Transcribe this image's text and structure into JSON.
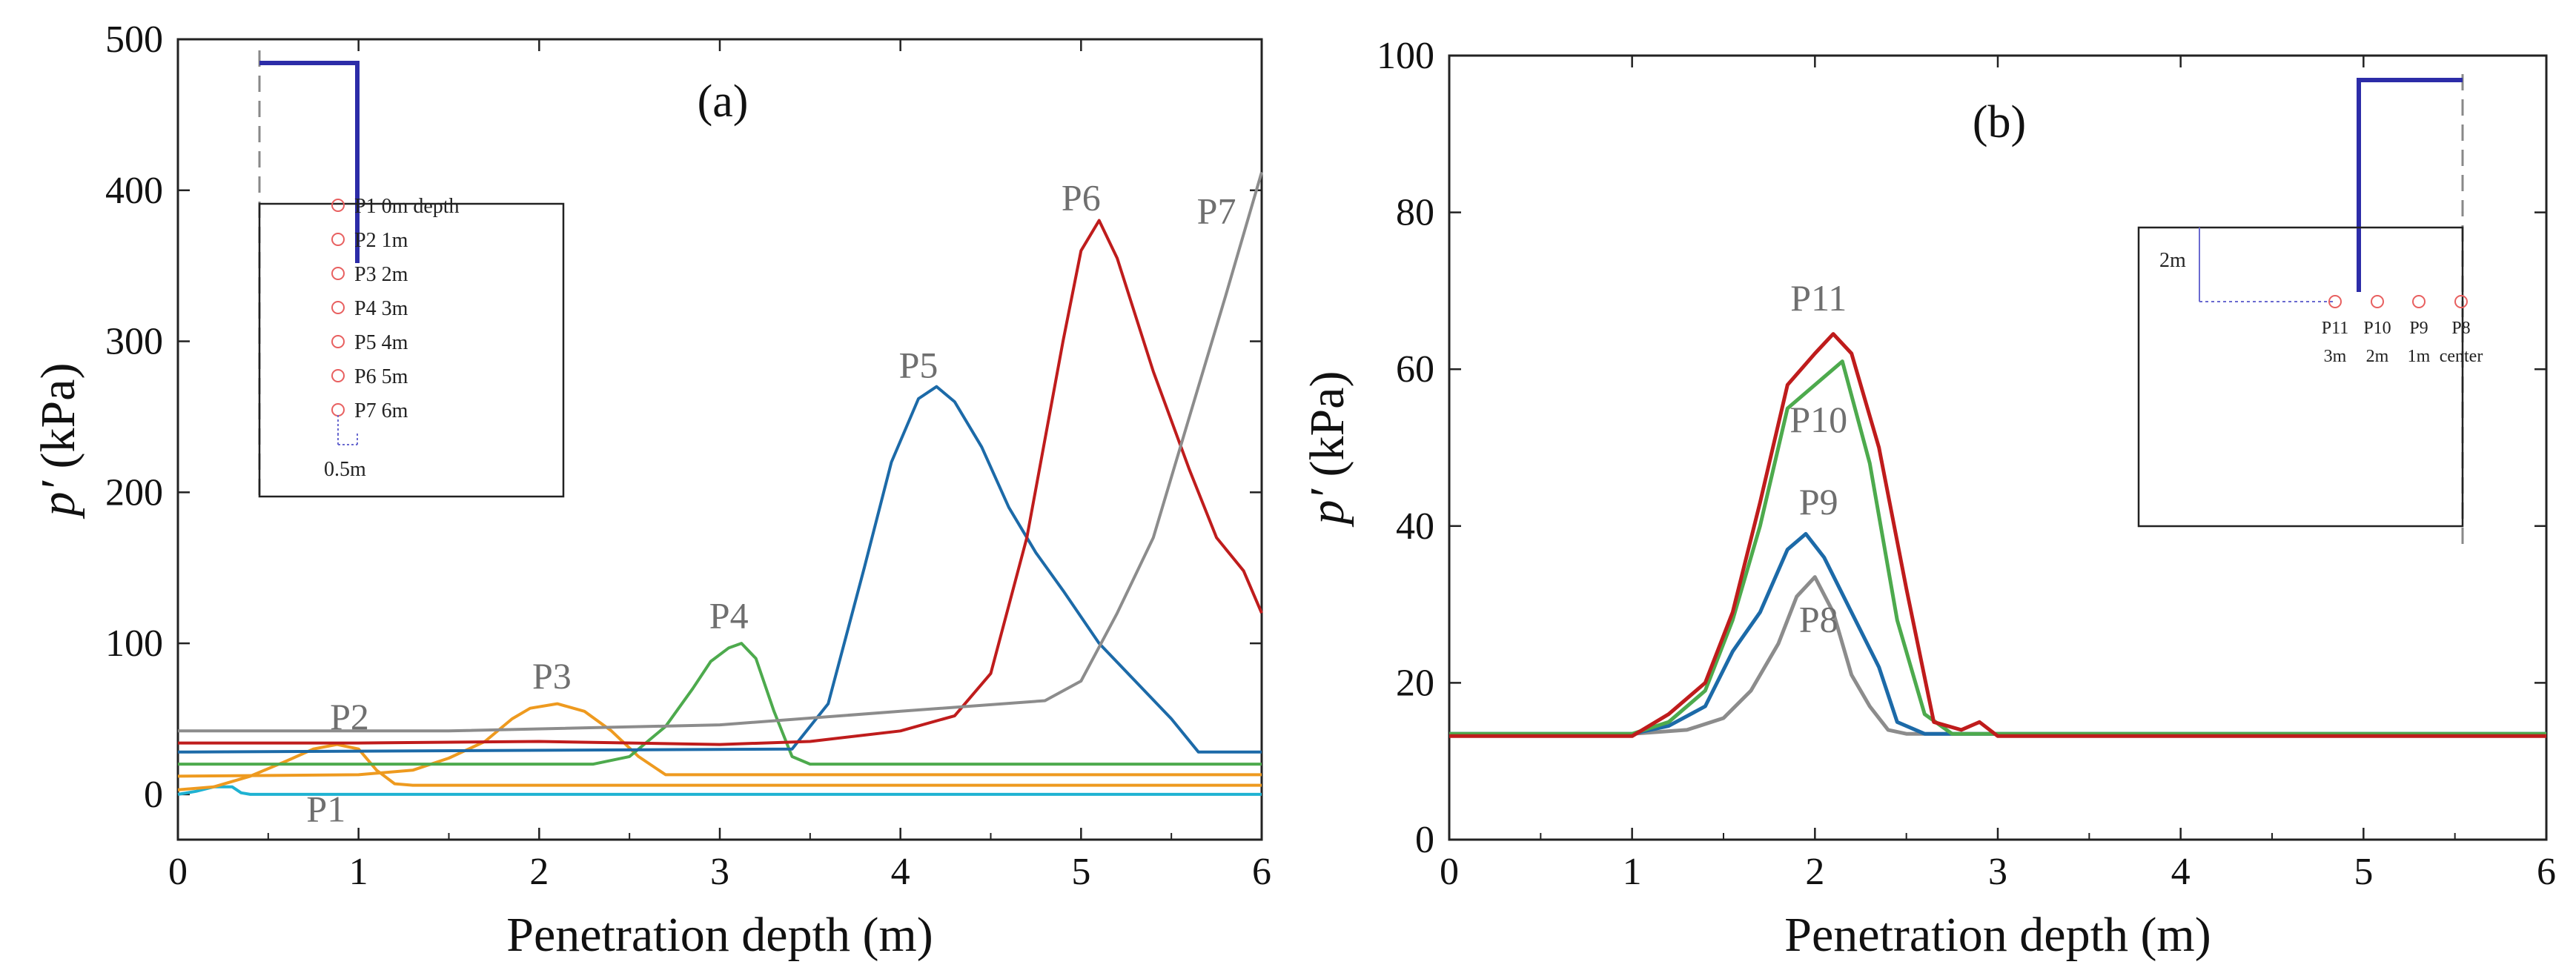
{
  "colors": {
    "P1": "#1fb2d2",
    "P2": "#ee9a1f",
    "P3": "#ee9a1f",
    "P4": "#4daa4d",
    "P5": "#1c6aa8",
    "P6": "#bf1c1c",
    "P7": "#8c8c8c",
    "P8": "#8c8c8c",
    "P9": "#1c6aa8",
    "P10": "#4daa4d",
    "P11": "#bf1c1c",
    "label": "#6f6f6f",
    "pile": "#2c2ca8",
    "marker": "#e86060"
  },
  "chart_data": [
    {
      "type": "line",
      "panel": "(a)",
      "xlabel": "Penetration depth (m)",
      "ylabel_italic": "p′",
      "ylabel_unit": " (kPa)",
      "xlim": [
        0,
        6
      ],
      "ylim": [
        -30,
        500
      ],
      "xticks": [
        "0",
        "1",
        "2",
        "3",
        "4",
        "5",
        "6"
      ],
      "yticks": [
        "0",
        "100",
        "200",
        "300",
        "400",
        "500"
      ],
      "series": [
        {
          "name": "P1",
          "label": "P1",
          "label_at": [
            0.82,
            -18
          ],
          "x": [
            0,
            0.1,
            0.2,
            0.3,
            0.35,
            0.4,
            6.0
          ],
          "y": [
            0,
            2,
            5,
            5,
            1,
            0,
            0
          ]
        },
        {
          "name": "P2",
          "label": "P2",
          "label_at": [
            0.95,
            43
          ],
          "x": [
            0,
            0.2,
            0.4,
            0.6,
            0.75,
            0.88,
            1.0,
            1.1,
            1.2,
            1.3,
            6.0
          ],
          "y": [
            3,
            5,
            12,
            22,
            30,
            33,
            30,
            16,
            7,
            6,
            6
          ]
        },
        {
          "name": "P3",
          "label": "P3",
          "label_at": [
            2.07,
            70
          ],
          "x": [
            0,
            1.0,
            1.3,
            1.5,
            1.7,
            1.85,
            1.95,
            2.1,
            2.25,
            2.4,
            2.55,
            2.7,
            6.0
          ],
          "y": [
            12,
            13,
            16,
            24,
            35,
            50,
            57,
            60,
            55,
            42,
            25,
            13,
            13
          ]
        },
        {
          "name": "P4",
          "label": "P4",
          "label_at": [
            3.05,
            110
          ],
          "x": [
            0,
            2.3,
            2.5,
            2.7,
            2.85,
            2.95,
            3.05,
            3.12,
            3.2,
            3.3,
            3.4,
            3.5,
            6.0
          ],
          "y": [
            20,
            20,
            25,
            45,
            70,
            88,
            97,
            100,
            90,
            55,
            25,
            20,
            20
          ]
        },
        {
          "name": "P5",
          "label": "P5",
          "label_at": [
            4.1,
            276
          ],
          "x": [
            0,
            3.4,
            3.6,
            3.8,
            3.95,
            4.1,
            4.2,
            4.3,
            4.45,
            4.6,
            4.75,
            4.9,
            5.1,
            5.3,
            5.5,
            5.65,
            6.0
          ],
          "y": [
            28,
            30,
            60,
            150,
            220,
            262,
            270,
            260,
            230,
            190,
            160,
            135,
            100,
            75,
            50,
            28,
            28
          ]
        },
        {
          "name": "P6",
          "label": "P6",
          "label_at": [
            5.0,
            387
          ],
          "x": [
            0,
            1.0,
            2.0,
            3.0,
            3.5,
            4.0,
            4.3,
            4.5,
            4.7,
            4.9,
            5.0,
            5.1,
            5.2,
            5.4,
            5.6,
            5.75,
            5.9,
            6.0
          ],
          "y": [
            34,
            34,
            35,
            33,
            35,
            42,
            52,
            80,
            170,
            300,
            360,
            380,
            355,
            280,
            215,
            170,
            148,
            120
          ]
        },
        {
          "name": "P7",
          "label": "P7",
          "label_at": [
            5.75,
            378
          ],
          "x": [
            0,
            1.5,
            3.0,
            4.0,
            4.8,
            5.0,
            5.2,
            5.4,
            5.6,
            5.8,
            6.0
          ],
          "y": [
            42,
            42,
            46,
            55,
            62,
            75,
            120,
            170,
            250,
            330,
            412
          ]
        }
      ],
      "inset": {
        "items": [
          "P1 0m depth",
          "P2 1m",
          "P3 2m",
          "P4 3m",
          "P5 4m",
          "P6 5m",
          "P7 6m"
        ],
        "dim_label": "0.5m"
      }
    },
    {
      "type": "line",
      "panel": "(b)",
      "xlabel": "Penetration depth (m)",
      "ylabel_italic": "p′",
      "ylabel_unit": " (kPa)",
      "xlim": [
        0,
        6
      ],
      "ylim": [
        0,
        100
      ],
      "xticks": [
        "0",
        "1",
        "2",
        "3",
        "4",
        "5",
        "6"
      ],
      "yticks": [
        "0",
        "20",
        "40",
        "60",
        "80",
        "100"
      ],
      "series": [
        {
          "name": "P8",
          "label": "P8",
          "label_at": [
            2.02,
            26.5
          ],
          "x": [
            0,
            1.0,
            1.3,
            1.5,
            1.65,
            1.8,
            1.9,
            2.0,
            2.1,
            2.2,
            2.3,
            2.4,
            2.5,
            6.0
          ],
          "y": [
            13.5,
            13.5,
            14,
            15.5,
            19,
            25,
            31,
            33.5,
            29,
            21,
            17,
            14,
            13.5,
            13.5
          ]
        },
        {
          "name": "P9",
          "label": "P9",
          "label_at": [
            2.02,
            41.5
          ],
          "x": [
            0,
            1.0,
            1.2,
            1.4,
            1.55,
            1.7,
            1.85,
            1.95,
            2.05,
            2.2,
            2.35,
            2.45,
            2.6,
            6.0
          ],
          "y": [
            13.5,
            13.5,
            14.5,
            17,
            24,
            29,
            37,
            39,
            36,
            29,
            22,
            15,
            13.5,
            13.5
          ]
        },
        {
          "name": "P10",
          "label": "P10",
          "label_at": [
            2.02,
            52
          ],
          "x": [
            0,
            1.0,
            1.2,
            1.4,
            1.55,
            1.7,
            1.85,
            2.0,
            2.15,
            2.3,
            2.45,
            2.6,
            2.75,
            6.0
          ],
          "y": [
            13.5,
            13.5,
            15,
            19,
            28,
            40,
            55,
            58,
            61,
            48,
            28,
            16,
            13.5,
            13.5
          ]
        },
        {
          "name": "P11",
          "label": "P11",
          "label_at": [
            2.02,
            67.5
          ],
          "x": [
            0,
            1.0,
            1.2,
            1.4,
            1.55,
            1.7,
            1.85,
            2.0,
            2.1,
            2.2,
            2.35,
            2.5,
            2.65,
            2.8,
            2.9,
            3.0,
            6.0
          ],
          "y": [
            13.2,
            13.2,
            16,
            20,
            29,
            43,
            58,
            62,
            64.5,
            62,
            50,
            32,
            15,
            14,
            15,
            13.2,
            13.2
          ]
        }
      ],
      "inset": {
        "items": [
          "P11",
          "P10",
          "P9",
          "P8"
        ],
        "subitems": [
          "3m",
          "2m",
          "1m",
          "center"
        ],
        "dim_label": "2m"
      }
    }
  ]
}
